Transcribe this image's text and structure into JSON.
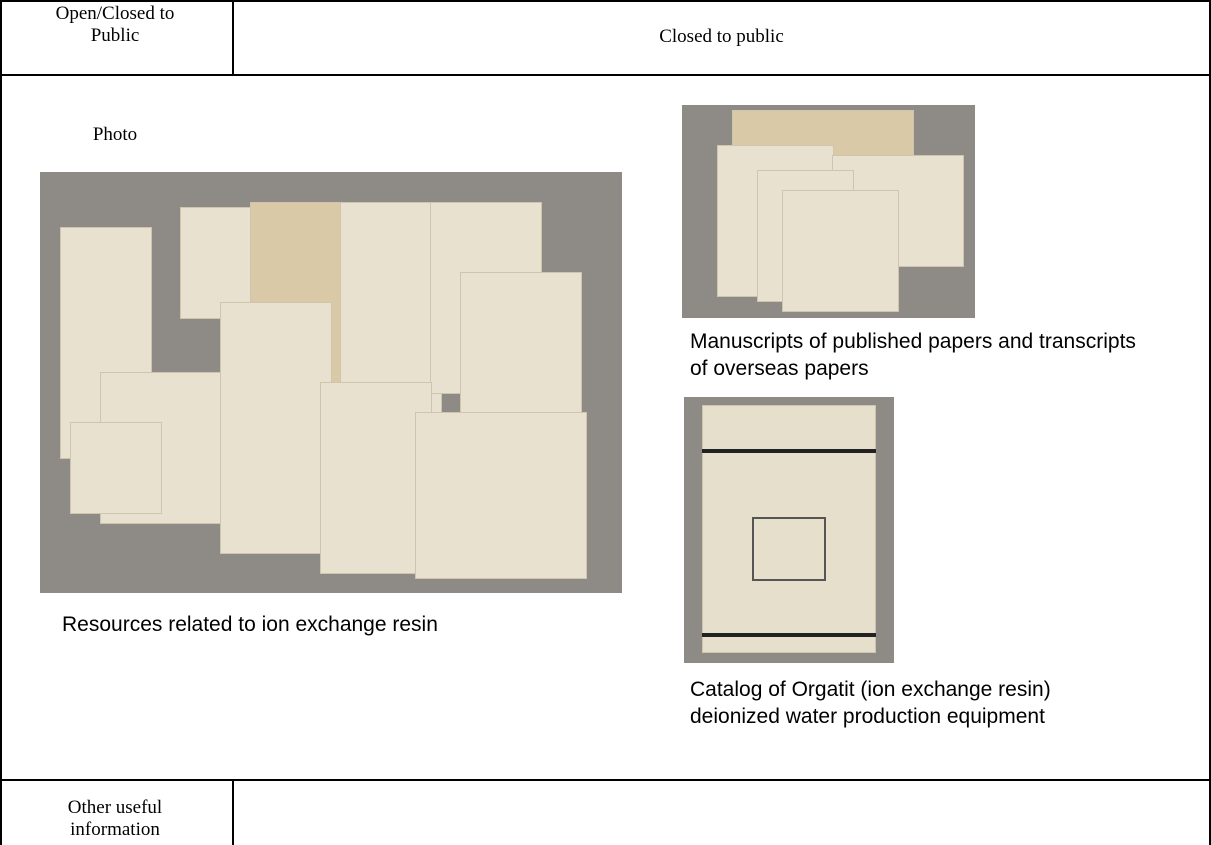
{
  "header_row": {
    "label": "Open/Closed to Public",
    "value": "Closed to public"
  },
  "photo_section": {
    "label": "Photo",
    "photos": [
      {
        "caption": "Resources related to ion exchange resin"
      },
      {
        "caption": "Manuscripts of published papers and transcripts of overseas papers"
      },
      {
        "caption": "Catalog of Orgatit (ion exchange resin) deionized water production equipment"
      }
    ]
  },
  "footer_row": {
    "label": "Other useful information"
  }
}
